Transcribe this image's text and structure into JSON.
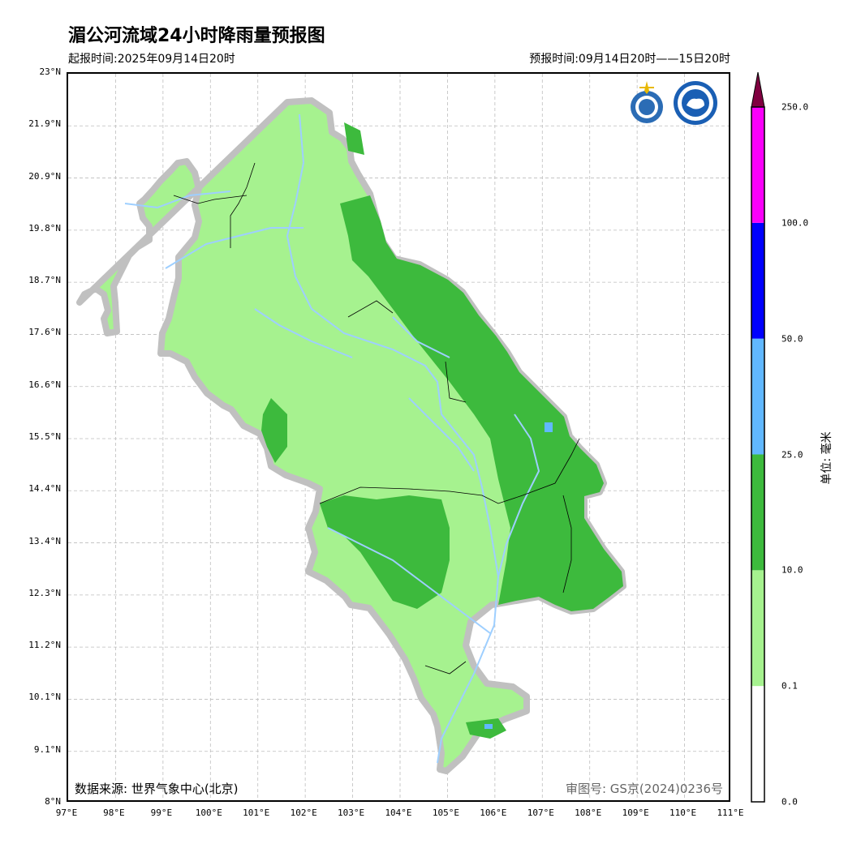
{
  "header": {
    "title": "湄公河流域24小时降雨量预报图",
    "issue_time": "起报时间:2025年09月14日20时",
    "valid_time": "预报时间:09月14日20时——15日20时"
  },
  "map": {
    "lat_labels": [
      "23°N",
      "21.9°N",
      "20.9°N",
      "19.8°N",
      "18.7°N",
      "17.6°N",
      "16.6°N",
      "15.5°N",
      "14.4°N",
      "13.4°N",
      "12.3°N",
      "11.2°N",
      "10.1°N",
      "9.1°N",
      "8°N"
    ],
    "lon_labels": [
      "97°E",
      "98°E",
      "99°E",
      "100°E",
      "101°E",
      "102°E",
      "103°E",
      "104°E",
      "105°E",
      "106°E",
      "107°E",
      "108°E",
      "109°E",
      "110°E",
      "111°E"
    ],
    "lat_range": [
      8,
      23
    ],
    "lon_range": [
      97,
      111
    ],
    "source_text": "数据来源: 世界气象中心(北京)",
    "approval_text": "审图号: GS京(2024)0236号",
    "colors": {
      "basin_outline": "#c0c0c0",
      "light_green": "#a6f28f",
      "green": "#3dba3d",
      "light_blue": "#61b8ff",
      "river": "#9ecfff"
    },
    "icons": [
      "wmo-logo-icon",
      "cma-logo-icon"
    ]
  },
  "legend": {
    "levels": [
      "0.0",
      "0.1",
      "10.0",
      "25.0",
      "50.0",
      "100.0",
      "250.0"
    ],
    "colors": [
      "#ffffff",
      "#a6f28f",
      "#3dba3d",
      "#61b8ff",
      "#0000fe",
      "#fa00fa",
      "#800040"
    ],
    "unit": "单位: 毫米"
  }
}
